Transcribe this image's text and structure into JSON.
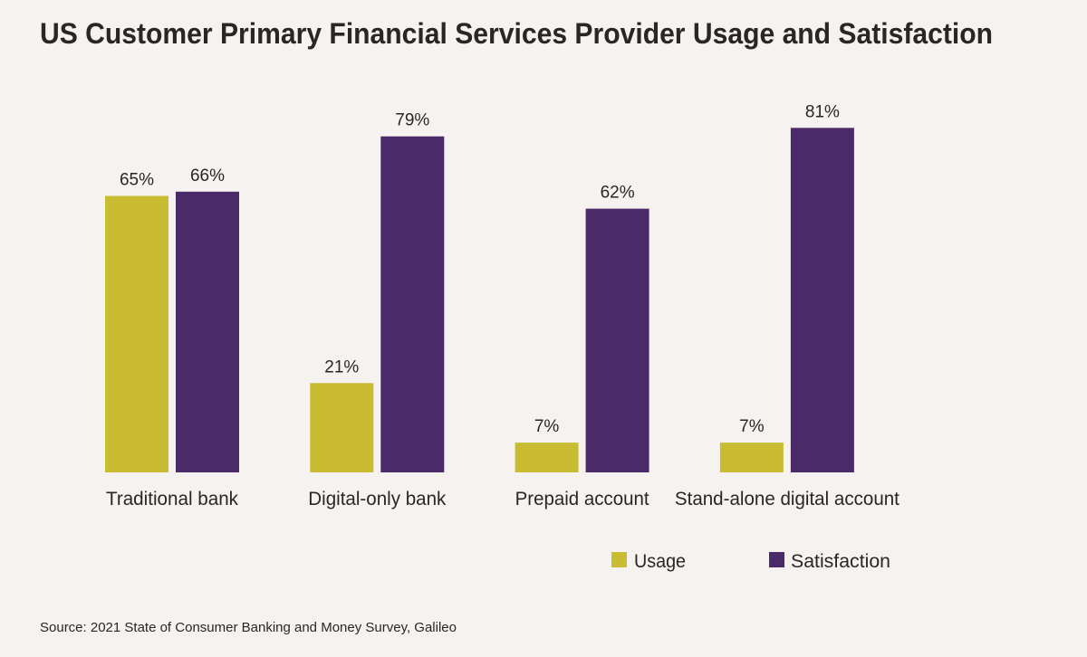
{
  "chart_data": {
    "type": "bar",
    "title": "US Customer Primary Financial Services Provider Usage and Satisfaction",
    "categories": [
      "Traditional bank",
      "Digital-only bank",
      "Prepaid account",
      "Stand-alone digital account"
    ],
    "series": [
      {
        "name": "Usage",
        "color": "#c9bc33",
        "values": [
          65,
          21,
          7,
          7
        ],
        "labels": [
          "65%",
          "21%",
          "7%",
          "7%"
        ]
      },
      {
        "name": "Satisfaction",
        "color": "#4a2a68",
        "values": [
          66,
          79,
          62,
          81
        ],
        "labels": [
          "66%",
          "79%",
          "62%",
          "81%"
        ]
      }
    ],
    "xlabel": "",
    "ylabel": "",
    "ylim": [
      0,
      100
    ],
    "grid": false,
    "legend": "bottom-right",
    "source": "Source: 2021 State of Consumer Banking and Money Survey, Galileo"
  }
}
